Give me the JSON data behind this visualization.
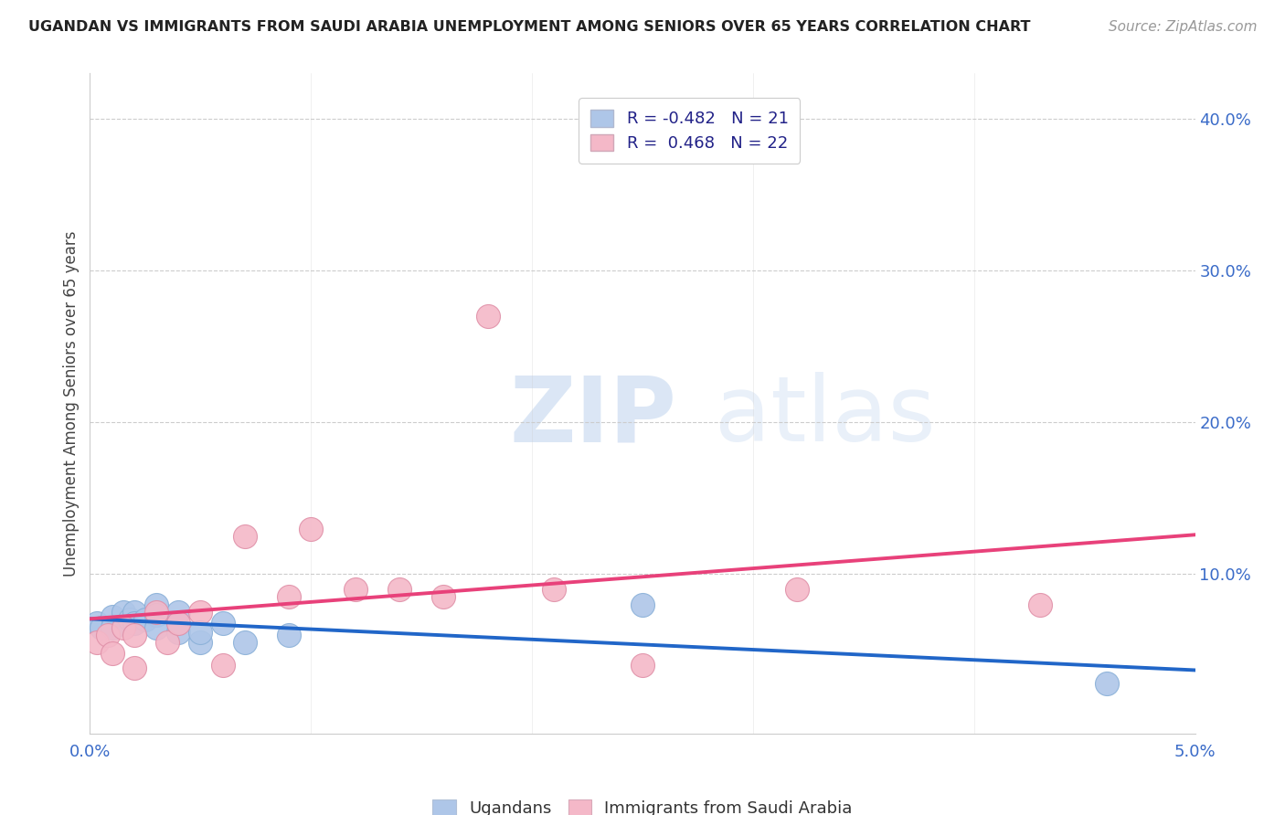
{
  "title": "UGANDAN VS IMMIGRANTS FROM SAUDI ARABIA UNEMPLOYMENT AMONG SENIORS OVER 65 YEARS CORRELATION CHART",
  "source": "Source: ZipAtlas.com",
  "ylabel": "Unemployment Among Seniors over 65 years",
  "xlim": [
    0.0,
    0.05
  ],
  "ylim": [
    -0.005,
    0.43
  ],
  "x_ticks": [
    0.0,
    0.01,
    0.02,
    0.03,
    0.04,
    0.05
  ],
  "y_ticks_right": [
    0.1,
    0.2,
    0.3,
    0.4
  ],
  "y_tick_labels_right": [
    "10.0%",
    "20.0%",
    "30.0%",
    "40.0%"
  ],
  "ugandan_color": "#aec6e8",
  "saudi_color": "#f4b8c8",
  "ugandan_line_color": "#2166c8",
  "saudi_line_color": "#e8417a",
  "ugandan_line_color_dash": "#d4a0b8",
  "background_color": "#ffffff",
  "grid_color": "#cccccc",
  "ugandan_x": [
    0.0003,
    0.0005,
    0.001,
    0.001,
    0.0015,
    0.0018,
    0.002,
    0.002,
    0.0025,
    0.003,
    0.003,
    0.003,
    0.004,
    0.004,
    0.005,
    0.005,
    0.006,
    0.007,
    0.009,
    0.025,
    0.046
  ],
  "ugandan_y": [
    0.068,
    0.065,
    0.072,
    0.065,
    0.075,
    0.07,
    0.075,
    0.068,
    0.07,
    0.08,
    0.073,
    0.065,
    0.075,
    0.062,
    0.055,
    0.062,
    0.068,
    0.055,
    0.06,
    0.08,
    0.028
  ],
  "saudi_x": [
    0.0003,
    0.0008,
    0.001,
    0.0015,
    0.002,
    0.002,
    0.003,
    0.0035,
    0.004,
    0.005,
    0.006,
    0.007,
    0.009,
    0.01,
    0.012,
    0.014,
    0.016,
    0.018,
    0.021,
    0.025,
    0.032,
    0.043
  ],
  "saudi_y": [
    0.055,
    0.06,
    0.048,
    0.065,
    0.06,
    0.038,
    0.075,
    0.055,
    0.068,
    0.075,
    0.04,
    0.125,
    0.085,
    0.13,
    0.09,
    0.09,
    0.085,
    0.27,
    0.09,
    0.04,
    0.09,
    0.08
  ],
  "legend_R_ugandan": "-0.482",
  "legend_N_ugandan": "21",
  "legend_R_saudi": "0.468",
  "legend_N_saudi": "22"
}
